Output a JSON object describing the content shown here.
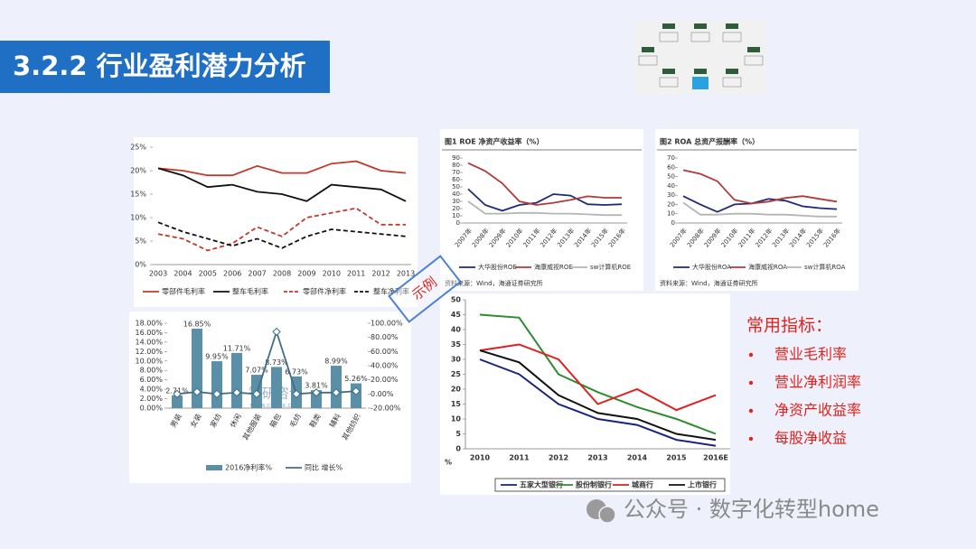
{
  "header": {
    "title": "3.2.2 行业盈利潜力分析"
  },
  "overlay_label": "示例",
  "indicators": {
    "title": "常用指标：",
    "items": [
      "营业毛利率",
      "营业净利润率",
      "净资产收益率",
      "每股净收益"
    ]
  },
  "watermark": "公众号 · 数字化转型home",
  "chart_data": [
    {
      "type": "line",
      "categories": [
        "2003",
        "2004",
        "2005",
        "2006",
        "2007",
        "2008",
        "2009",
        "2010",
        "2011",
        "2012",
        "2013"
      ],
      "ylim": [
        0,
        25
      ],
      "yticks": [
        {
          "value": 0,
          "label": "0%"
        },
        {
          "value": 5,
          "label": "5%"
        },
        {
          "value": 10,
          "label": "10%"
        },
        {
          "value": 15,
          "label": "15%"
        },
        {
          "value": 20,
          "label": "20%"
        },
        {
          "value": 25,
          "label": "25%"
        }
      ],
      "series": [
        {
          "name": "零部件毛利率",
          "color": "#c0392b",
          "style": "solid",
          "values": [
            20.5,
            20,
            19,
            19,
            21,
            19.5,
            19.5,
            21.5,
            22,
            20,
            19.5
          ]
        },
        {
          "name": "整车毛利率",
          "color": "#111111",
          "style": "solid",
          "values": [
            20.5,
            19,
            16.5,
            17,
            15.5,
            15,
            13.5,
            17,
            16.5,
            16,
            13.5
          ]
        },
        {
          "name": "零部件净利率",
          "color": "#c0392b",
          "style": "dashed",
          "values": [
            6.5,
            5.5,
            3,
            4.5,
            8,
            6,
            10,
            11,
            12,
            8.5,
            8.5
          ]
        },
        {
          "name": "整车净利率",
          "color": "#111111",
          "style": "dashed",
          "values": [
            9,
            7,
            5.5,
            4,
            5.5,
            3.5,
            6,
            7.5,
            7,
            6.5,
            6
          ]
        }
      ]
    },
    {
      "type": "bar",
      "categories": [
        "男装",
        "女装",
        "家纺",
        "休闲",
        "其他服装",
        "箱包",
        "毛纺",
        "鞋类",
        "辅料",
        "其他纺织"
      ],
      "ylim": [
        0,
        18
      ],
      "yticks": [
        {
          "value": 0,
          "label": "0.00%"
        },
        {
          "value": 2,
          "label": "2.00%"
        },
        {
          "value": 4,
          "label": "4.00%"
        },
        {
          "value": 6,
          "label": "6.00%"
        },
        {
          "value": 8,
          "label": "8.00%"
        },
        {
          "value": 10,
          "label": "10.00%"
        },
        {
          "value": 12,
          "label": "12.00%"
        },
        {
          "value": 14,
          "label": "14.00%"
        },
        {
          "value": 16,
          "label": "16.00%"
        },
        {
          "value": 18,
          "label": "18.00%"
        }
      ],
      "y2lim": [
        -20,
        100
      ],
      "y2ticks": [
        {
          "value": -20,
          "label": "-20.00%"
        },
        {
          "value": 0,
          "label": "0.00%"
        },
        {
          "value": 20,
          "label": "20.00%"
        },
        {
          "value": 40,
          "label": "40.00%"
        },
        {
          "value": 60,
          "label": "60.00%"
        },
        {
          "value": 80,
          "label": "80.00%"
        },
        {
          "value": 100,
          "label": "100.00%"
        }
      ],
      "annotation": "智研咨询",
      "annotation_url": "www.chyxx.com",
      "series": [
        {
          "name": "2016净利率%",
          "color": "#5b8fa8",
          "values": [
            2.71,
            16.85,
            9.95,
            11.71,
            7.07,
            8.73,
            6.73,
            3.81,
            8.99,
            5.26
          ],
          "value_labels": [
            "2.71%",
            "16.85%",
            "9.95%",
            "11.71%",
            "7.07%",
            "8.73%",
            "6.73%",
            "3.81%",
            "8.99%",
            "5.26%"
          ]
        },
        {
          "name": "同比 增长%",
          "color": "#3f6f88",
          "axis": "y2",
          "marker": "diamond",
          "values": [
            0,
            3,
            0,
            2,
            0,
            88,
            0,
            2,
            2,
            4
          ]
        }
      ]
    },
    {
      "type": "line",
      "title": "图1 ROE 净资产收益率（%）",
      "source": "资料来源：Wind，海通证券研究所",
      "categories": [
        "2007年",
        "2008年",
        "2009年",
        "2010年",
        "2011年",
        "2012年",
        "2013年",
        "2014年",
        "2015年",
        "2016年"
      ],
      "ylim": [
        0,
        90
      ],
      "yticks": [
        0,
        10,
        20,
        30,
        40,
        50,
        60,
        70,
        80,
        90
      ],
      "series": [
        {
          "name": "大华股份ROE",
          "color": "#1f2a78",
          "style": "solid",
          "values": [
            47,
            25,
            17,
            25,
            28,
            40,
            38,
            26,
            25,
            26
          ]
        },
        {
          "name": "海康威视ROE",
          "color": "#b03a3a",
          "style": "solid",
          "values": [
            83,
            72,
            55,
            30,
            25,
            28,
            32,
            37,
            35,
            35
          ]
        },
        {
          "name": "sw计算机ROE",
          "color": "#b5b5b5",
          "style": "solid",
          "values": [
            30,
            13,
            13,
            14,
            14,
            13,
            13,
            12,
            11,
            11
          ]
        }
      ]
    },
    {
      "type": "line",
      "title": "图2 ROA 总资产报酬率（%）",
      "source": "资料来源：Wind，海通证券研究所",
      "categories": [
        "2007年",
        "2008年",
        "2009年",
        "2010年",
        "2011年",
        "2012年",
        "2013年",
        "2014年",
        "2015年",
        "2016年"
      ],
      "ylim": [
        0,
        70
      ],
      "yticks": [
        0,
        10,
        20,
        30,
        40,
        50,
        60,
        70
      ],
      "series": [
        {
          "name": "大华股份ROA",
          "color": "#1f2a78",
          "style": "solid",
          "values": [
            29,
            20,
            12,
            20,
            21,
            26,
            24,
            18,
            16,
            15
          ]
        },
        {
          "name": "海康威视ROA",
          "color": "#b03a3a",
          "style": "solid",
          "values": [
            57,
            53,
            45,
            25,
            21,
            23,
            27,
            29,
            26,
            23
          ]
        },
        {
          "name": "sw计算机ROA",
          "color": "#b5b5b5",
          "style": "solid",
          "values": [
            22,
            9,
            9,
            10,
            10,
            9,
            9,
            8,
            7,
            7
          ]
        }
      ]
    },
    {
      "type": "line",
      "ylabel": "%",
      "categories": [
        "2010",
        "2011",
        "2012",
        "2013",
        "2014",
        "2015",
        "2016E"
      ],
      "ylim": [
        0,
        50
      ],
      "yticks": [
        0,
        5,
        10,
        15,
        20,
        25,
        30,
        35,
        40,
        45,
        50
      ],
      "series": [
        {
          "name": "五家大型银行",
          "color": "#1a237e",
          "style": "solid",
          "values": [
            30,
            25,
            15,
            10,
            8,
            3,
            1
          ]
        },
        {
          "name": "股份制银行",
          "color": "#2e8b2e",
          "style": "solid",
          "values": [
            45,
            44,
            25,
            19,
            14,
            10,
            5
          ]
        },
        {
          "name": "城商行",
          "color": "#e02020",
          "style": "solid",
          "values": [
            33,
            35,
            30,
            15,
            20,
            13,
            18
          ]
        },
        {
          "name": "上市银行",
          "color": "#111111",
          "style": "solid",
          "values": [
            33,
            29,
            18,
            12,
            10,
            5,
            3
          ]
        }
      ]
    }
  ]
}
